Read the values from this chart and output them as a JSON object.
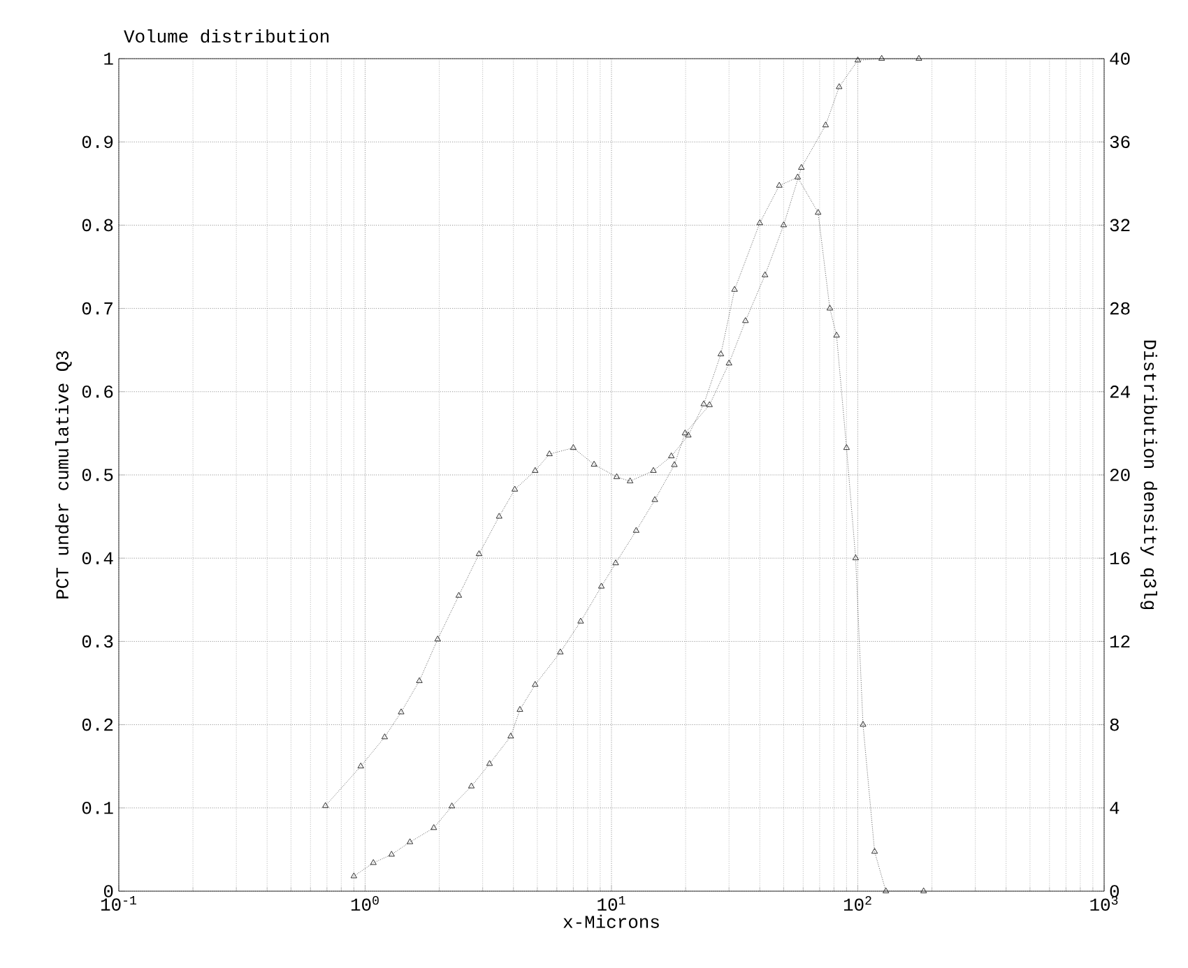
{
  "chart_data": {
    "type": "line",
    "title": "Volume distribution",
    "xlabel": "x-Microns",
    "ylabel": "PCT under cumulative Q3",
    "y2label": "Distribution density q3lg",
    "log": "x",
    "grid": true,
    "marker": "triangle",
    "line_style": "dotted",
    "xlim": [
      0.1,
      1000
    ],
    "xticks": [
      {
        "value": 0.1,
        "label": "10$^{-1}$"
      },
      {
        "value": 1,
        "label": "10$^{0}$"
      },
      {
        "value": 10,
        "label": "10$^{1}$"
      },
      {
        "value": 100,
        "label": "10$^{2}$"
      },
      {
        "value": 1000,
        "label": "10$^{3}$"
      }
    ],
    "ylim": [
      0,
      1
    ],
    "yticks": [
      0,
      0.1,
      0.2,
      0.3,
      0.4,
      0.5,
      0.6,
      0.7,
      0.8,
      0.9,
      1
    ],
    "y2lim": [
      0,
      40
    ],
    "y2ticks": [
      0,
      4,
      8,
      12,
      16,
      20,
      24,
      28,
      32,
      36,
      40
    ],
    "series": [
      {
        "color": "#000000",
        "x": [
          0.9,
          1.08,
          1.28,
          1.52,
          1.9,
          2.25,
          2.7,
          3.2,
          3.9,
          4.25,
          4.9,
          6.2,
          7.5,
          9.1,
          10.4,
          12.6,
          15,
          18,
          19.9,
          25,
          30,
          35,
          42,
          50,
          59,
          74,
          84,
          100,
          125,
          177
        ],
        "values": [
          0.018,
          0.034,
          0.044,
          0.059,
          0.076,
          0.102,
          0.126,
          0.153,
          0.186,
          0.218,
          0.248,
          0.287,
          0.324,
          0.366,
          0.394,
          0.433,
          0.47,
          0.512,
          0.55,
          0.584,
          0.634,
          0.685,
          0.74,
          0.8,
          0.869,
          0.92,
          0.966,
          0.998,
          1.0,
          1.0
        ]
      },
      {
        "color": "#000000",
        "axis": "y2",
        "x": [
          0.69,
          0.96,
          1.2,
          1.4,
          1.66,
          1.97,
          2.4,
          2.9,
          3.5,
          4.05,
          4.9,
          5.6,
          7.0,
          8.5,
          10.5,
          11.9,
          14.8,
          17.5,
          20.5,
          23.7,
          27.8,
          31.6,
          40,
          48,
          57,
          69,
          77,
          82,
          90,
          98,
          105,
          117,
          130,
          185
        ],
        "values": [
          4.1,
          6.0,
          7.4,
          8.6,
          10.1,
          12.1,
          14.2,
          16.2,
          18.0,
          19.3,
          20.2,
          21.0,
          21.3,
          20.5,
          19.9,
          19.7,
          20.2,
          20.9,
          21.9,
          23.4,
          25.8,
          28.9,
          32.1,
          33.9,
          34.3,
          32.6,
          28,
          26.7,
          21.3,
          16,
          8,
          1.9,
          0,
          0
        ]
      }
    ]
  }
}
